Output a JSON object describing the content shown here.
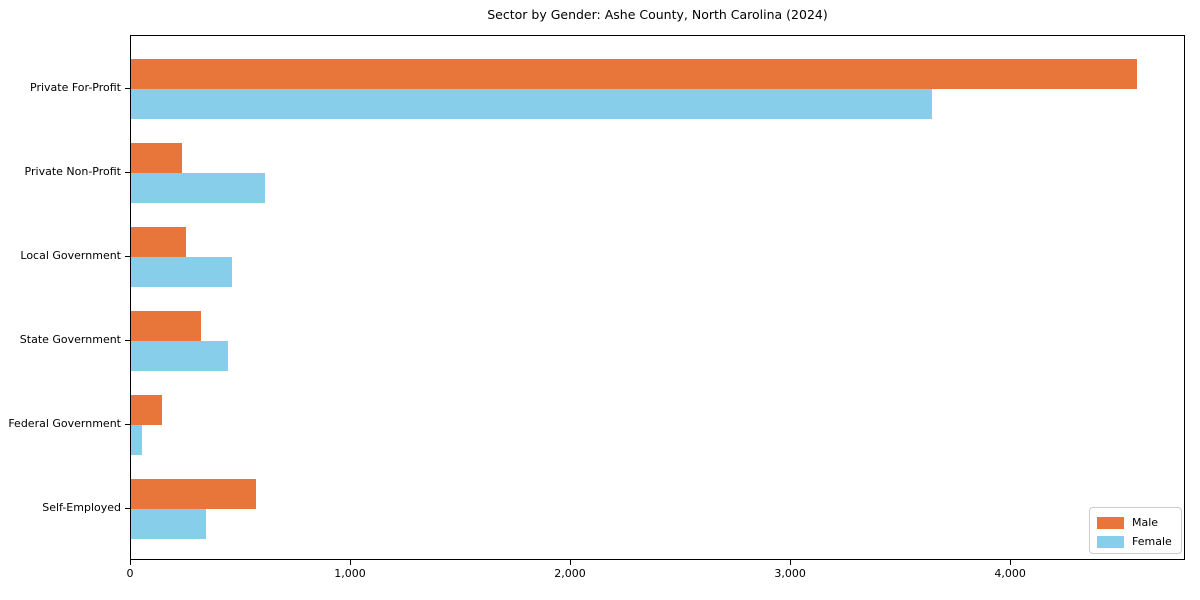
{
  "title": "Sector by Gender: Ashe County, North Carolina (2024)",
  "colors": {
    "male": "#e8763b",
    "female": "#87ceeb",
    "spine": "#000000",
    "legend_border": "#cccccc",
    "background": "#ffffff"
  },
  "legend": {
    "items": [
      {
        "label": "Male",
        "color": "#e8763b"
      },
      {
        "label": "Female",
        "color": "#87ceeb"
      }
    ]
  },
  "chart_data": {
    "type": "bar",
    "orientation": "horizontal",
    "title": "Sector by Gender: Ashe County, North Carolina (2024)",
    "xlabel": "",
    "ylabel": "",
    "categories": [
      "Private For-Profit",
      "Private Non-Profit",
      "Local Government",
      "State Government",
      "Federal Government",
      "Self-Employed"
    ],
    "series": [
      {
        "name": "Male",
        "color": "#e8763b",
        "values": [
          4570,
          230,
          250,
          320,
          140,
          570
        ]
      },
      {
        "name": "Female",
        "color": "#87ceeb",
        "values": [
          3640,
          610,
          460,
          440,
          50,
          340
        ]
      }
    ],
    "xlim": [
      0,
      4795
    ],
    "xticks": {
      "values": [
        0,
        1000,
        2000,
        3000,
        4000
      ],
      "labels": [
        "0",
        "1,000",
        "2,000",
        "3,000",
        "4,000"
      ]
    },
    "grid": false,
    "legend_position": "lower right"
  }
}
